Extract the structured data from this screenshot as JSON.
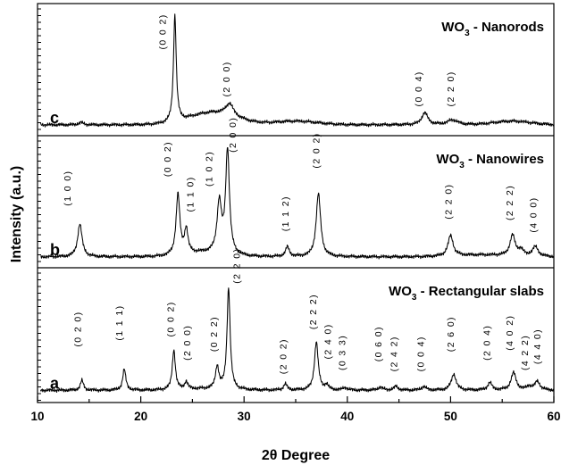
{
  "chart_data": {
    "type": "line",
    "xlabel": "2θ Degree",
    "ylabel": "Intensity (a.u.)",
    "xlim": [
      10,
      60
    ],
    "x_ticks": [
      10,
      20,
      30,
      40,
      50,
      60
    ],
    "grid": false,
    "panels": [
      {
        "letter": "c",
        "title_main": "WO",
        "title_sub": "3",
        "title_rest": " - Nanorods",
        "baseline": 0.06,
        "peaks": [
          [
            14.2,
            0.02,
            0.25
          ],
          [
            23.3,
            0.88,
            0.16
          ],
          [
            28.6,
            0.1,
            0.45
          ],
          [
            47.5,
            0.1,
            0.35
          ],
          [
            50.2,
            0.04,
            0.6
          ]
        ],
        "humps": [
          [
            27.0,
            0.1,
            3.2
          ],
          [
            35.0,
            0.03,
            3.0
          ],
          [
            56.0,
            0.03,
            2.5
          ]
        ],
        "labels": [
          {
            "text": "(0 0 2)",
            "x": 22.4,
            "y": 0.68
          },
          {
            "text": "(2 0 0)",
            "x": 28.6,
            "y": 0.29
          },
          {
            "text": "(0 0 4)",
            "x": 47.2,
            "y": 0.21
          },
          {
            "text": "(2 2 0)",
            "x": 50.3,
            "y": 0.21
          }
        ]
      },
      {
        "letter": "b",
        "title_main": "WO",
        "title_sub": "3",
        "title_rest": " - Nanowires",
        "baseline": 0.06,
        "peaks": [
          [
            14.1,
            0.27,
            0.26
          ],
          [
            23.6,
            0.5,
            0.22
          ],
          [
            24.4,
            0.2,
            0.2
          ],
          [
            27.6,
            0.42,
            0.26
          ],
          [
            28.4,
            0.86,
            0.22
          ],
          [
            34.2,
            0.08,
            0.22
          ],
          [
            37.2,
            0.52,
            0.26
          ],
          [
            50.0,
            0.17,
            0.3
          ],
          [
            56.0,
            0.17,
            0.3
          ],
          [
            56.8,
            0.05,
            0.3
          ],
          [
            58.2,
            0.08,
            0.35
          ]
        ],
        "humps": [
          [
            26.0,
            0.03,
            2.5
          ],
          [
            53.0,
            0.015,
            3.5
          ]
        ],
        "labels": [
          {
            "text": "(1 0 0)",
            "x": 13.2,
            "y": 0.48
          },
          {
            "text": "(0 0 2)",
            "x": 22.9,
            "y": 0.72
          },
          {
            "text": "(1 1 0)",
            "x": 25.1,
            "y": 0.43
          },
          {
            "text": "(1 0 2)",
            "x": 26.9,
            "y": 0.64
          },
          {
            "text": "(2 0 0)",
            "x": 29.2,
            "y": 0.92
          },
          {
            "text": "(1 1 2)",
            "x": 34.3,
            "y": 0.27
          },
          {
            "text": "(2 0 2)",
            "x": 37.3,
            "y": 0.79
          },
          {
            "text": "(2 2 0)",
            "x": 50.1,
            "y": 0.37
          },
          {
            "text": "(2 2 2)",
            "x": 56.0,
            "y": 0.36
          },
          {
            "text": "(4 0 0)",
            "x": 58.3,
            "y": 0.26
          }
        ]
      },
      {
        "letter": "a",
        "title_main": "WO",
        "title_sub": "3",
        "title_rest": " - Rectangular slabs",
        "baseline": 0.07,
        "peaks": [
          [
            14.3,
            0.08,
            0.18
          ],
          [
            18.4,
            0.17,
            0.18
          ],
          [
            23.2,
            0.32,
            0.18
          ],
          [
            24.4,
            0.06,
            0.18
          ],
          [
            27.4,
            0.18,
            0.2
          ],
          [
            28.5,
            0.82,
            0.18
          ],
          [
            34.0,
            0.05,
            0.2
          ],
          [
            37.0,
            0.39,
            0.22
          ],
          [
            38.0,
            0.04,
            0.2
          ],
          [
            39.8,
            0.02,
            0.25
          ],
          [
            43.2,
            0.025,
            0.25
          ],
          [
            44.7,
            0.03,
            0.25
          ],
          [
            47.4,
            0.03,
            0.25
          ],
          [
            50.3,
            0.13,
            0.28
          ],
          [
            53.8,
            0.06,
            0.25
          ],
          [
            56.1,
            0.14,
            0.3
          ],
          [
            57.6,
            0.03,
            0.25
          ],
          [
            58.4,
            0.07,
            0.3
          ]
        ],
        "humps": [
          [
            26.0,
            0.01,
            3.0
          ]
        ],
        "labels": [
          {
            "text": "(0 2 0)",
            "x": 14.2,
            "y": 0.42
          },
          {
            "text": "(1 1 1)",
            "x": 18.2,
            "y": 0.47
          },
          {
            "text": "(0 0 2)",
            "x": 23.2,
            "y": 0.5
          },
          {
            "text": "(2 0 0)",
            "x": 24.8,
            "y": 0.31
          },
          {
            "text": "(0 2 2)",
            "x": 27.4,
            "y": 0.38
          },
          {
            "text": "(2 2 0)",
            "x": 29.6,
            "y": 0.93
          },
          {
            "text": "(2 0 2)",
            "x": 34.1,
            "y": 0.2
          },
          {
            "text": "(2 2 2)",
            "x": 37.0,
            "y": 0.56
          },
          {
            "text": "(2 4 0)",
            "x": 38.4,
            "y": 0.32
          },
          {
            "text": "(0 3 3)",
            "x": 39.8,
            "y": 0.23
          },
          {
            "text": "(0 6 0)",
            "x": 43.3,
            "y": 0.3
          },
          {
            "text": "(2 4 2)",
            "x": 44.8,
            "y": 0.22
          },
          {
            "text": "(0 0 4)",
            "x": 47.4,
            "y": 0.22
          },
          {
            "text": "(2 6 0)",
            "x": 50.3,
            "y": 0.38
          },
          {
            "text": "(2 0 4)",
            "x": 53.8,
            "y": 0.31
          },
          {
            "text": "(4 0 2)",
            "x": 56.0,
            "y": 0.39
          },
          {
            "text": "(4 2 2)",
            "x": 57.5,
            "y": 0.23
          },
          {
            "text": "(4 4 0)",
            "x": 58.7,
            "y": 0.28
          }
        ]
      }
    ]
  }
}
